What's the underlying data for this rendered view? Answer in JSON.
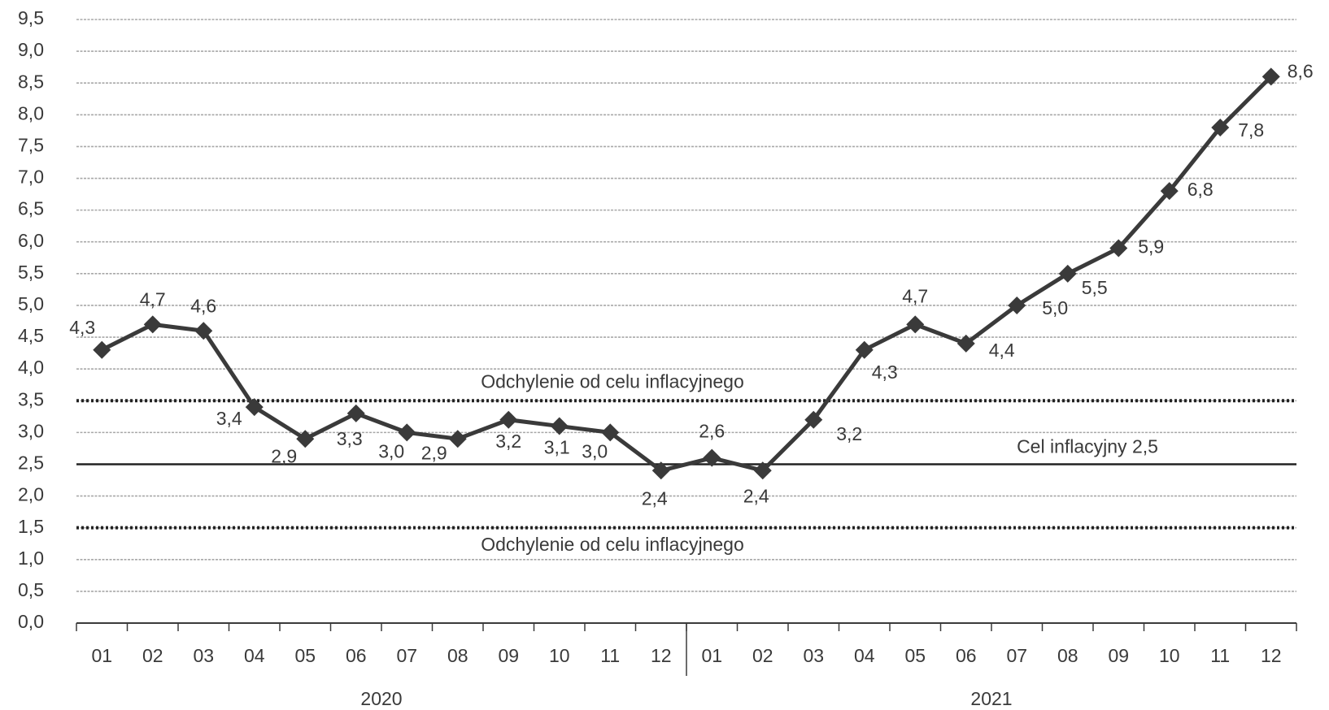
{
  "chart_data": {
    "type": "line",
    "categories": [
      "01",
      "02",
      "03",
      "04",
      "05",
      "06",
      "07",
      "08",
      "09",
      "10",
      "11",
      "12",
      "01",
      "02",
      "03",
      "04",
      "05",
      "06",
      "07",
      "08",
      "09",
      "10",
      "11",
      "12"
    ],
    "groups": [
      {
        "label": "2020",
        "count": 12
      },
      {
        "label": "2021",
        "count": 12
      }
    ],
    "series": [
      {
        "name": null,
        "color": "#3a3a3a",
        "values": [
          4.3,
          4.7,
          4.6,
          3.4,
          2.9,
          3.3,
          3.0,
          2.9,
          3.2,
          3.1,
          3.0,
          2.4,
          2.6,
          2.4,
          3.2,
          4.3,
          4.7,
          4.4,
          5.0,
          5.5,
          5.9,
          6.8,
          7.8,
          8.6
        ],
        "value_labels": [
          "4,3",
          "4,7",
          "4,6",
          "3,4",
          "2,9",
          "3,3",
          "3,0",
          "2,9",
          "3,2",
          "3,1",
          "3,0",
          "2,4",
          "2,6",
          "2,4",
          "3,2",
          "4,3",
          "4,7",
          "4,4",
          "5,0",
          "5,5",
          "5,9",
          "6,8",
          "7,8",
          "8,6"
        ]
      }
    ],
    "reference_lines": [
      {
        "value": 3.5,
        "label": "Odchylenie od celu inflacyjnego",
        "style": "dotted"
      },
      {
        "value": 2.5,
        "label": "Cel inflacyjny 2,5",
        "style": "solid"
      },
      {
        "value": 1.5,
        "label": "Odchylenie od celu inflacyjnego",
        "style": "dotted"
      }
    ],
    "ylim": [
      0,
      9.5
    ],
    "yticks": [
      {
        "value": 0,
        "label": "0,0"
      },
      {
        "value": 0.5,
        "label": "0,5"
      },
      {
        "value": 1,
        "label": "1,0"
      },
      {
        "value": 1.5,
        "label": "1,5"
      },
      {
        "value": 2,
        "label": "2,0"
      },
      {
        "value": 2.5,
        "label": "2,5"
      },
      {
        "value": 3,
        "label": "3,0"
      },
      {
        "value": 3.5,
        "label": "3,5"
      },
      {
        "value": 4,
        "label": "4,0"
      },
      {
        "value": 4.5,
        "label": "4,5"
      },
      {
        "value": 5,
        "label": "5,0"
      },
      {
        "value": 5.5,
        "label": "5,5"
      },
      {
        "value": 6,
        "label": "6,0"
      },
      {
        "value": 6.5,
        "label": "6,5"
      },
      {
        "value": 7,
        "label": "7,0"
      },
      {
        "value": 7.5,
        "label": "7,5"
      },
      {
        "value": 8,
        "label": "8,0"
      },
      {
        "value": 8.5,
        "label": "8,5"
      },
      {
        "value": 9,
        "label": "9,0"
      },
      {
        "value": 9.5,
        "label": "9,5"
      }
    ],
    "grid": true
  }
}
